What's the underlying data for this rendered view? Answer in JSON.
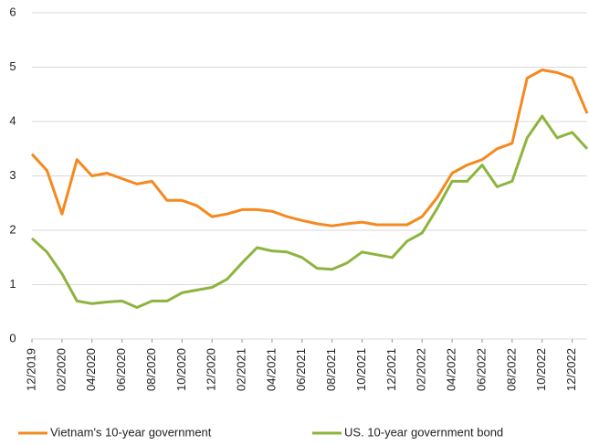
{
  "chart_data": {
    "type": "line",
    "categories": [
      "12/2019",
      null,
      "02/2020",
      null,
      "04/2020",
      null,
      "06/2020",
      null,
      "08/2020",
      null,
      "10/2020",
      null,
      "12/2020",
      null,
      "02/2021",
      null,
      "04/2021",
      null,
      "06/2021",
      null,
      "08/2021",
      null,
      "10/2021",
      null,
      "12/2021",
      null,
      "02/2022",
      null,
      "04/2022",
      null,
      "06/2022",
      null,
      "08/2022",
      null,
      "10/2022",
      null,
      "12/2022",
      null
    ],
    "series": [
      {
        "name": "Vietnam's 10-year government",
        "color": "#f5891f",
        "values": [
          3.4,
          3.1,
          2.3,
          3.3,
          3.0,
          3.05,
          2.95,
          2.85,
          2.9,
          2.55,
          2.55,
          2.45,
          2.25,
          2.3,
          2.38,
          2.38,
          2.35,
          2.25,
          2.18,
          2.12,
          2.08,
          2.12,
          2.15,
          2.1,
          2.1,
          2.1,
          2.25,
          2.6,
          3.05,
          3.2,
          3.3,
          3.5,
          3.6,
          4.8,
          4.95,
          4.9,
          4.8,
          4.15
        ]
      },
      {
        "name": "US. 10-year government bond",
        "color": "#8db43e",
        "values": [
          1.85,
          1.6,
          1.2,
          0.7,
          0.65,
          0.68,
          0.7,
          0.58,
          0.7,
          0.7,
          0.85,
          0.9,
          0.95,
          1.1,
          1.4,
          1.68,
          1.62,
          1.6,
          1.5,
          1.3,
          1.28,
          1.4,
          1.6,
          1.55,
          1.5,
          1.8,
          1.95,
          2.4,
          2.9,
          2.9,
          3.2,
          2.8,
          2.9,
          3.7,
          4.1,
          3.7,
          3.8,
          3.5
        ]
      }
    ],
    "ylim": [
      0,
      6
    ],
    "yticks": [
      0,
      1,
      2,
      3,
      4,
      5,
      6
    ],
    "grid": true,
    "legend": "bottom"
  }
}
